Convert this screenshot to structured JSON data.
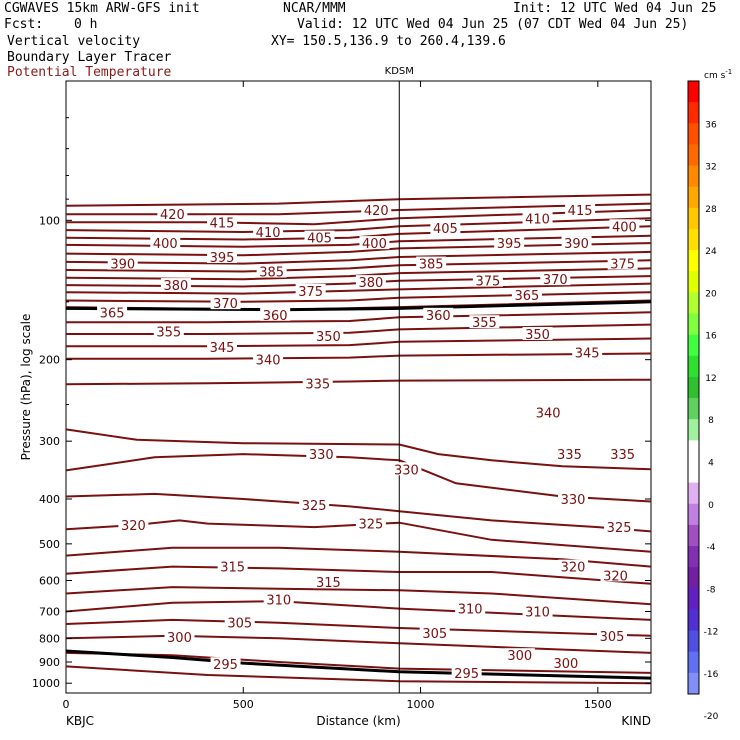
{
  "header": {
    "model": "CGWAVES 15km ARW-GFS init",
    "org": "NCAR/MMM",
    "init": "Init: 12 UTC Wed 04 Jun 25",
    "fcst_label": "Fcst:",
    "fcst_value": "0 h",
    "valid": "Valid: 12 UTC Wed 04 Jun 25 (07 CDT Wed 04 Jun 25)",
    "field1": "Vertical velocity",
    "xy": "XY= 150.5,136.9 to 260.4,139.6",
    "field2": "Boundary Layer Tracer",
    "field3": "Potential Temperature",
    "field3_color": "#8b1a1a"
  },
  "chart_data": {
    "type": "line",
    "title": "KDSM",
    "xlabel": "Distance (km)",
    "ylabel": "Pressure (hPa), log scale",
    "xlim": [
      0,
      1650
    ],
    "ylim": [
      1050,
      50
    ],
    "y_scale": "log",
    "x_ticks": [
      0,
      500,
      1000,
      1500
    ],
    "y_ticks": [
      100,
      200,
      300,
      400,
      500,
      600,
      700,
      800,
      900,
      1000
    ],
    "left_endpoint": "KBJC",
    "right_endpoint": "KIND",
    "marker_x": 940,
    "contour_color": "#7a1010",
    "contour_labels": [
      {
        "text": "420",
        "x": 300,
        "p": 97
      },
      {
        "text": "415",
        "x": 440,
        "p": 101
      },
      {
        "text": "410",
        "x": 570,
        "p": 106
      },
      {
        "text": "405",
        "x": 715,
        "p": 109
      },
      {
        "text": "400",
        "x": 870,
        "p": 112
      },
      {
        "text": "420",
        "x": 875,
        "p": 95
      },
      {
        "text": "405",
        "x": 1070,
        "p": 104
      },
      {
        "text": "410",
        "x": 1330,
        "p": 99
      },
      {
        "text": "415",
        "x": 1450,
        "p": 95
      },
      {
        "text": "400",
        "x": 1575,
        "p": 103
      },
      {
        "text": "395",
        "x": 1250,
        "p": 112
      },
      {
        "text": "390",
        "x": 1440,
        "p": 112
      },
      {
        "text": "375",
        "x": 1570,
        "p": 124
      },
      {
        "text": "400",
        "x": 280,
        "p": 112
      },
      {
        "text": "395",
        "x": 440,
        "p": 120
      },
      {
        "text": "390",
        "x": 160,
        "p": 124
      },
      {
        "text": "385",
        "x": 580,
        "p": 129
      },
      {
        "text": "380",
        "x": 310,
        "p": 138
      },
      {
        "text": "375",
        "x": 690,
        "p": 142
      },
      {
        "text": "380",
        "x": 860,
        "p": 136
      },
      {
        "text": "385",
        "x": 1030,
        "p": 124
      },
      {
        "text": "375",
        "x": 1190,
        "p": 135
      },
      {
        "text": "370",
        "x": 1380,
        "p": 134
      },
      {
        "text": "370",
        "x": 450,
        "p": 151
      },
      {
        "text": "365",
        "x": 130,
        "p": 158
      },
      {
        "text": "360",
        "x": 590,
        "p": 160
      },
      {
        "text": "360",
        "x": 1050,
        "p": 160
      },
      {
        "text": "365",
        "x": 1300,
        "p": 145
      },
      {
        "text": "355",
        "x": 290,
        "p": 174
      },
      {
        "text": "355",
        "x": 1180,
        "p": 166
      },
      {
        "text": "350",
        "x": 740,
        "p": 178
      },
      {
        "text": "350",
        "x": 1330,
        "p": 176
      },
      {
        "text": "345",
        "x": 440,
        "p": 188
      },
      {
        "text": "345",
        "x": 1470,
        "p": 193
      },
      {
        "text": "340",
        "x": 570,
        "p": 200
      },
      {
        "text": "335",
        "x": 710,
        "p": 225
      },
      {
        "text": "340",
        "x": 1360,
        "p": 260
      },
      {
        "text": "335",
        "x": 1420,
        "p": 320
      },
      {
        "text": "335",
        "x": 1570,
        "p": 320
      },
      {
        "text": "330",
        "x": 720,
        "p": 320
      },
      {
        "text": "330",
        "x": 960,
        "p": 345
      },
      {
        "text": "330",
        "x": 1430,
        "p": 400
      },
      {
        "text": "325",
        "x": 700,
        "p": 412
      },
      {
        "text": "325",
        "x": 860,
        "p": 452
      },
      {
        "text": "325",
        "x": 1560,
        "p": 460
      },
      {
        "text": "320",
        "x": 190,
        "p": 455
      },
      {
        "text": "320",
        "x": 1430,
        "p": 560
      },
      {
        "text": "320",
        "x": 1550,
        "p": 585
      },
      {
        "text": "315",
        "x": 470,
        "p": 560
      },
      {
        "text": "315",
        "x": 740,
        "p": 605
      },
      {
        "text": "310",
        "x": 600,
        "p": 660
      },
      {
        "text": "310",
        "x": 1140,
        "p": 690
      },
      {
        "text": "310",
        "x": 1330,
        "p": 700
      },
      {
        "text": "305",
        "x": 490,
        "p": 740
      },
      {
        "text": "305",
        "x": 1040,
        "p": 780
      },
      {
        "text": "305",
        "x": 1540,
        "p": 790
      },
      {
        "text": "300",
        "x": 320,
        "p": 795
      },
      {
        "text": "300",
        "x": 1280,
        "p": 870
      },
      {
        "text": "300",
        "x": 1410,
        "p": 905
      },
      {
        "text": "295",
        "x": 450,
        "p": 910
      },
      {
        "text": "295",
        "x": 1130,
        "p": 950
      }
    ],
    "contours": [
      {
        "theta": 425,
        "p": [
          [
            0,
            93
          ],
          [
            600,
            92
          ],
          [
            940,
            90
          ],
          [
            1650,
            88
          ]
        ]
      },
      {
        "theta": 420,
        "p": [
          [
            0,
            97
          ],
          [
            300,
            97
          ],
          [
            600,
            97
          ],
          [
            940,
            95
          ],
          [
            1650,
            92
          ]
        ]
      },
      {
        "theta": 415,
        "p": [
          [
            0,
            101
          ],
          [
            400,
            101
          ],
          [
            700,
            102
          ],
          [
            940,
            99
          ],
          [
            1650,
            95
          ]
        ]
      },
      {
        "theta": 410,
        "p": [
          [
            0,
            105
          ],
          [
            500,
            106
          ],
          [
            800,
            105
          ],
          [
            940,
            103
          ],
          [
            1650,
            99
          ]
        ]
      },
      {
        "theta": 405,
        "p": [
          [
            0,
            109
          ],
          [
            500,
            110
          ],
          [
            800,
            109
          ],
          [
            940,
            107
          ],
          [
            1650,
            103
          ]
        ]
      },
      {
        "theta": 400,
        "p": [
          [
            0,
            113
          ],
          [
            500,
            114
          ],
          [
            800,
            113
          ],
          [
            940,
            111
          ],
          [
            1650,
            108
          ]
        ]
      },
      {
        "theta": 395,
        "p": [
          [
            0,
            118
          ],
          [
            500,
            119
          ],
          [
            800,
            117
          ],
          [
            940,
            115
          ],
          [
            1650,
            112
          ]
        ]
      },
      {
        "theta": 390,
        "p": [
          [
            0,
            123
          ],
          [
            500,
            124
          ],
          [
            800,
            122
          ],
          [
            940,
            120
          ],
          [
            1650,
            117
          ]
        ]
      },
      {
        "theta": 385,
        "p": [
          [
            0,
            128
          ],
          [
            500,
            129
          ],
          [
            800,
            127
          ],
          [
            940,
            125
          ],
          [
            1650,
            122
          ]
        ]
      },
      {
        "theta": 380,
        "p": [
          [
            0,
            133
          ],
          [
            500,
            134
          ],
          [
            800,
            132
          ],
          [
            940,
            130
          ],
          [
            1650,
            127
          ]
        ]
      },
      {
        "theta": 375,
        "p": [
          [
            0,
            138
          ],
          [
            500,
            139
          ],
          [
            800,
            137
          ],
          [
            940,
            135
          ],
          [
            1650,
            132
          ]
        ]
      },
      {
        "theta": 370,
        "p": [
          [
            0,
            143
          ],
          [
            500,
            144
          ],
          [
            800,
            142
          ],
          [
            940,
            141
          ],
          [
            1650,
            137
          ]
        ]
      },
      {
        "theta": 365,
        "p": [
          [
            0,
            149
          ],
          [
            500,
            150
          ],
          [
            800,
            149
          ],
          [
            940,
            147
          ],
          [
            1650,
            143
          ]
        ]
      },
      {
        "theta": 360,
        "p": [
          [
            0,
            154
          ],
          [
            300,
            155
          ],
          [
            600,
            156
          ],
          [
            940,
            154
          ],
          [
            1650,
            149
          ]
        ]
      },
      {
        "theta": 355,
        "p": [
          [
            0,
            166
          ],
          [
            400,
            166
          ],
          [
            800,
            165
          ],
          [
            940,
            162
          ],
          [
            1650,
            158
          ]
        ]
      },
      {
        "theta": 350,
        "p": [
          [
            0,
            176
          ],
          [
            400,
            176
          ],
          [
            800,
            175
          ],
          [
            940,
            172
          ],
          [
            1650,
            168
          ]
        ]
      },
      {
        "theta": 345,
        "p": [
          [
            0,
            187
          ],
          [
            400,
            187
          ],
          [
            800,
            186
          ],
          [
            940,
            183
          ],
          [
            1650,
            180
          ]
        ]
      },
      {
        "theta": 340,
        "p": [
          [
            0,
            199
          ],
          [
            400,
            199
          ],
          [
            800,
            198
          ],
          [
            940,
            196
          ],
          [
            1650,
            194
          ]
        ]
      },
      {
        "theta": 335,
        "p": [
          [
            0,
            226
          ],
          [
            400,
            225
          ],
          [
            800,
            223
          ],
          [
            940,
            222
          ],
          [
            1650,
            221
          ]
        ]
      },
      {
        "theta": 330,
        "p": [
          [
            0,
            283
          ],
          [
            200,
            298
          ],
          [
            500,
            303
          ],
          [
            940,
            305
          ],
          [
            1050,
            320
          ],
          [
            1200,
            330
          ],
          [
            1400,
            340
          ],
          [
            1650,
            345
          ]
        ]
      },
      {
        "theta": 330,
        "p": [
          [
            0,
            347
          ],
          [
            250,
            325
          ],
          [
            500,
            320
          ],
          [
            800,
            325
          ],
          [
            940,
            330
          ],
          [
            1100,
            370
          ],
          [
            1400,
            395
          ],
          [
            1650,
            405
          ]
        ]
      },
      {
        "theta": 325,
        "p": [
          [
            0,
            395
          ],
          [
            250,
            390
          ],
          [
            500,
            400
          ],
          [
            800,
            415
          ],
          [
            940,
            425
          ],
          [
            1200,
            445
          ],
          [
            1500,
            460
          ],
          [
            1650,
            470
          ]
        ]
      },
      {
        "theta": 320,
        "p": [
          [
            0,
            465
          ],
          [
            200,
            455
          ],
          [
            320,
            445
          ],
          [
            400,
            452
          ],
          [
            700,
            460
          ],
          [
            940,
            450
          ],
          [
            1200,
            490
          ],
          [
            1650,
            520
          ]
        ]
      },
      {
        "theta": 320,
        "p": [
          [
            0,
            530
          ],
          [
            300,
            510
          ],
          [
            600,
            510
          ],
          [
            940,
            520
          ],
          [
            1400,
            540
          ],
          [
            1650,
            560
          ]
        ]
      },
      {
        "theta": 315,
        "p": [
          [
            0,
            580
          ],
          [
            300,
            560
          ],
          [
            600,
            565
          ],
          [
            940,
            575
          ],
          [
            1200,
            575
          ],
          [
            1650,
            610
          ]
        ]
      },
      {
        "theta": 310,
        "p": [
          [
            0,
            640
          ],
          [
            300,
            620
          ],
          [
            600,
            625
          ],
          [
            940,
            630
          ],
          [
            1200,
            640
          ],
          [
            1650,
            675
          ]
        ]
      },
      {
        "theta": 310,
        "p": [
          [
            0,
            700
          ],
          [
            300,
            670
          ],
          [
            600,
            665
          ],
          [
            940,
            690
          ],
          [
            1650,
            730
          ]
        ]
      },
      {
        "theta": 305,
        "p": [
          [
            0,
            745
          ],
          [
            300,
            730
          ],
          [
            600,
            740
          ],
          [
            940,
            760
          ],
          [
            1650,
            790
          ]
        ]
      },
      {
        "theta": 300,
        "p": [
          [
            0,
            800
          ],
          [
            300,
            790
          ],
          [
            600,
            800
          ],
          [
            940,
            820
          ],
          [
            1650,
            860
          ]
        ]
      },
      {
        "theta": 295,
        "p": [
          [
            0,
            860
          ],
          [
            300,
            870
          ],
          [
            600,
            900
          ],
          [
            940,
            930
          ],
          [
            1650,
            950
          ]
        ]
      },
      {
        "theta": 290,
        "p": [
          [
            0,
            920
          ],
          [
            400,
            960
          ],
          [
            940,
            990
          ],
          [
            1650,
            1000
          ]
        ]
      }
    ],
    "dark_contours": [
      {
        "p": [
          [
            0,
            155
          ],
          [
            600,
            156
          ],
          [
            940,
            155
          ],
          [
            1650,
            150
          ]
        ]
      },
      {
        "p": [
          [
            0,
            852
          ],
          [
            300,
            880
          ],
          [
            500,
            905
          ],
          [
            940,
            945
          ],
          [
            1650,
            975
          ]
        ]
      }
    ],
    "colorbar": {
      "unit_label": "cm s",
      "unit_sup": "-1",
      "ticks": [
        "36",
        "32",
        "28",
        "24",
        "20",
        "16",
        "12",
        "8",
        "4",
        "0",
        "-4",
        "-8",
        "-12",
        "-16",
        "-20"
      ],
      "colors": [
        "#ff0000",
        "#ff2a00",
        "#ff5000",
        "#ff6a00",
        "#ff8a00",
        "#ffa800",
        "#ffc800",
        "#ffe000",
        "#ffff00",
        "#e0ff00",
        "#b0ff30",
        "#80ff40",
        "#40ff40",
        "#30e030",
        "#30c030",
        "#60d060",
        "#a0f0a0",
        "#ffffff",
        "#ffffff",
        "#e0b0f0",
        "#c080e0",
        "#a050c0",
        "#8030b0",
        "#7020a0",
        "#6020c0",
        "#5030d0",
        "#5050e0",
        "#6070f0",
        "#8090f8"
      ]
    }
  }
}
